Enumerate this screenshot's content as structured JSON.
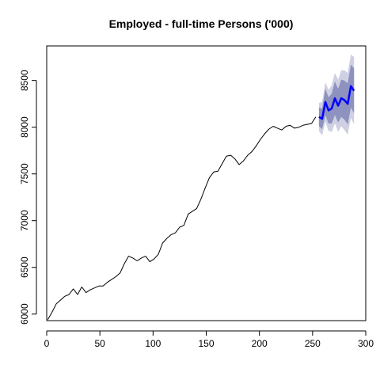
{
  "chart_data": {
    "type": "line",
    "title": "Employed - full-time Persons ('000)",
    "xlabel": "",
    "ylabel": "",
    "xlim": [
      0,
      300
    ],
    "ylim": [
      5930,
      8870
    ],
    "xticks": [
      0,
      50,
      100,
      150,
      200,
      250,
      300
    ],
    "yticks": [
      6000,
      6500,
      7000,
      7500,
      8000,
      8500
    ],
    "grid": false,
    "colors": {
      "history": "#000000",
      "forecast": "#0000ff",
      "interval_80": "#8d92bf",
      "interval_95": "#cfd0e3"
    },
    "series": [
      {
        "role": "history",
        "x": [
          1,
          5,
          9,
          13,
          17,
          21,
          25,
          29,
          33,
          37,
          41,
          45,
          49,
          53,
          57,
          61,
          65,
          69,
          73,
          77,
          81,
          85,
          89,
          93,
          97,
          101,
          105,
          109,
          113,
          117,
          121,
          125,
          129,
          133,
          137,
          141,
          145,
          149,
          153,
          157,
          161,
          165,
          169,
          173,
          177,
          181,
          185,
          189,
          193,
          197,
          201,
          205,
          209,
          213,
          217,
          221,
          225,
          229,
          233,
          237,
          241,
          245,
          249,
          253
        ],
        "y": [
          5940,
          6020,
          6110,
          6150,
          6190,
          6210,
          6270,
          6210,
          6290,
          6230,
          6260,
          6280,
          6300,
          6300,
          6340,
          6370,
          6400,
          6440,
          6540,
          6620,
          6600,
          6570,
          6600,
          6620,
          6560,
          6590,
          6640,
          6760,
          6810,
          6850,
          6870,
          6930,
          6950,
          7070,
          7100,
          7130,
          7230,
          7350,
          7460,
          7520,
          7530,
          7610,
          7690,
          7700,
          7660,
          7600,
          7640,
          7700,
          7740,
          7800,
          7870,
          7930,
          7980,
          8010,
          7990,
          7970,
          8010,
          8020,
          7990,
          8000,
          8020,
          8030,
          8040,
          8110
        ]
      },
      {
        "role": "forecast",
        "x": [
          256,
          259,
          262,
          265,
          268,
          271,
          274,
          277,
          280,
          283,
          286,
          289
        ],
        "y": [
          8110,
          8090,
          8270,
          8180,
          8200,
          8310,
          8230,
          8310,
          8290,
          8250,
          8440,
          8390
        ]
      }
    ],
    "intervals": [
      {
        "level": "95",
        "x": [
          256,
          259,
          262,
          265,
          268,
          271,
          274,
          277,
          280,
          283,
          286,
          289
        ],
        "lower": [
          7960,
          7910,
          8060,
          7960,
          7950,
          8040,
          7950,
          8010,
          7970,
          7920,
          8100,
          8030
        ],
        "upper": [
          8260,
          8270,
          8480,
          8400,
          8450,
          8580,
          8510,
          8610,
          8610,
          8580,
          8780,
          8750
        ]
      },
      {
        "level": "80",
        "x": [
          256,
          259,
          262,
          265,
          268,
          271,
          274,
          277,
          280,
          283,
          286,
          289
        ],
        "lower": [
          8010,
          7980,
          8130,
          8040,
          8040,
          8130,
          8050,
          8110,
          8080,
          8030,
          8210,
          8150
        ],
        "upper": [
          8210,
          8200,
          8410,
          8320,
          8360,
          8490,
          8410,
          8510,
          8500,
          8470,
          8670,
          8630
        ]
      }
    ]
  }
}
